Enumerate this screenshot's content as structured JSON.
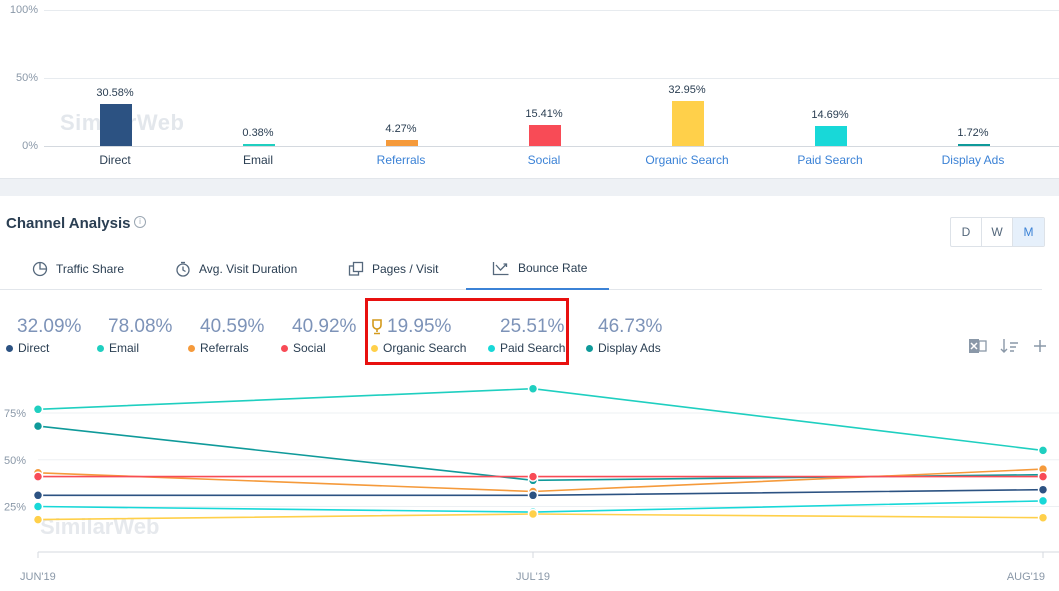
{
  "traffic_share_chart": {
    "y_labels": [
      "100%",
      "50%",
      "0%"
    ],
    "watermark": "SimilarWeb",
    "bars": [
      {
        "name": "Direct",
        "value_label": "30.58%",
        "value": 30.58,
        "color": "#2c5282",
        "link": false
      },
      {
        "name": "Email",
        "value_label": "0.38%",
        "value": 0.38,
        "color": "#1fcfc0",
        "link": false
      },
      {
        "name": "Referrals",
        "value_label": "4.27%",
        "value": 4.27,
        "color": "#f59a3b",
        "link": true
      },
      {
        "name": "Social",
        "value_label": "15.41%",
        "value": 15.41,
        "color": "#f84b56",
        "link": true
      },
      {
        "name": "Organic Search",
        "value_label": "32.95%",
        "value": 32.95,
        "color": "#ffd04a",
        "link": true
      },
      {
        "name": "Paid Search",
        "value_label": "14.69%",
        "value": 14.69,
        "color": "#18d8d8",
        "link": true
      },
      {
        "name": "Display Ads",
        "value_label": "1.72%",
        "value": 1.72,
        "color": "#0f9a9a",
        "link": true
      }
    ]
  },
  "channel_analysis": {
    "title": "Channel Analysis",
    "info_icon": "info-icon",
    "period_buttons": [
      "D",
      "W",
      "M"
    ],
    "active_period": "M",
    "tabs": [
      {
        "label": "Traffic Share",
        "icon": "pie-icon",
        "active": false
      },
      {
        "label": "Avg. Visit Duration",
        "icon": "clock-icon",
        "active": false
      },
      {
        "label": "Pages / Visit",
        "icon": "pages-icon",
        "active": false
      },
      {
        "label": "Bounce Rate",
        "icon": "bounce-icon",
        "active": true
      }
    ],
    "legend": [
      {
        "value": "32.09%",
        "name": "Direct",
        "color": "#2c5282"
      },
      {
        "value": "78.08%",
        "name": "Email",
        "color": "#1fcfc0"
      },
      {
        "value": "40.59%",
        "name": "Referrals",
        "color": "#f59a3b"
      },
      {
        "value": "40.92%",
        "name": "Social",
        "color": "#f84b56"
      },
      {
        "value": "19.95%",
        "name": "Organic Search",
        "color": "#ffd04a"
      },
      {
        "value": "25.51%",
        "name": "Paid Search",
        "color": "#18d8d8"
      },
      {
        "value": "46.73%",
        "name": "Display Ads",
        "color": "#0f9a9a"
      }
    ],
    "tools": [
      "excel-icon",
      "sort-icon",
      "plus-icon"
    ]
  },
  "chart_data": {
    "type": "line",
    "x": [
      "JUN'19",
      "JUL'19",
      "AUG'19"
    ],
    "y_ticks": [
      "75%",
      "50%",
      "25%"
    ],
    "ylim": [
      0,
      100
    ],
    "watermark": "SimilarWeb",
    "series": [
      {
        "name": "Email",
        "color": "#1fcfc0",
        "values": [
          77,
          88,
          55
        ]
      },
      {
        "name": "Display Ads",
        "color": "#0f9a9a",
        "values": [
          68,
          39,
          42
        ]
      },
      {
        "name": "Referrals",
        "color": "#f59a3b",
        "values": [
          43,
          33,
          45
        ]
      },
      {
        "name": "Social",
        "color": "#f84b56",
        "values": [
          41,
          41,
          41
        ]
      },
      {
        "name": "Direct",
        "color": "#2c5282",
        "values": [
          31,
          31,
          34
        ]
      },
      {
        "name": "Paid Search",
        "color": "#18d8d8",
        "values": [
          25,
          22,
          28
        ]
      },
      {
        "name": "Organic Search",
        "color": "#ffd04a",
        "values": [
          18,
          21,
          19
        ]
      }
    ]
  }
}
